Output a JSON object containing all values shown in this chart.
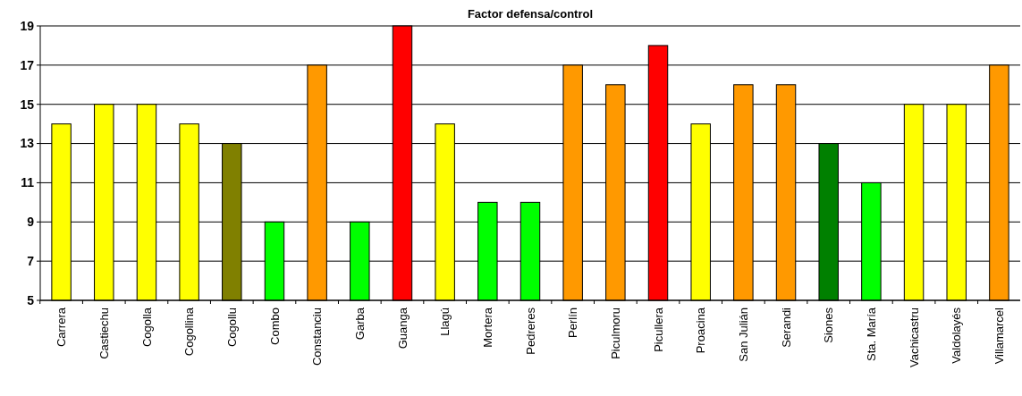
{
  "chart_data": {
    "type": "bar",
    "title": "Factor defensa/control",
    "categories": [
      "Carrera",
      "Castiechu",
      "Cogolla",
      "Cogollina",
      "Cogollu",
      "Combo",
      "Constanciu",
      "Garba",
      "Guanga",
      "Llagú",
      "Mortera",
      "Pedreres",
      "Perlín",
      "Piculmoru",
      "Picullera",
      "Proacina",
      "San Julián",
      "Serandi",
      "Siones",
      "Sta. María",
      "Vachicastru",
      "Valdolayés",
      "Villamarcel"
    ],
    "values": [
      14,
      15,
      15,
      14,
      13,
      9,
      17,
      9,
      19,
      14,
      10,
      10,
      17,
      16,
      18,
      14,
      16,
      16,
      13,
      11,
      15,
      15,
      17
    ],
    "colors": [
      "#ffff00",
      "#ffff00",
      "#ffff00",
      "#ffff00",
      "#808000",
      "#00ff00",
      "#ff9900",
      "#00ff00",
      "#ff0000",
      "#ffff00",
      "#00ff00",
      "#00ff00",
      "#ff9900",
      "#ff9900",
      "#ff0000",
      "#ffff00",
      "#ff9900",
      "#ff9900",
      "#008000",
      "#00ff00",
      "#ffff00",
      "#ffff00",
      "#ff9900"
    ],
    "ylim": [
      5,
      19
    ],
    "yticks": [
      5,
      7,
      9,
      11,
      13,
      15,
      17,
      19
    ],
    "grid": "y"
  }
}
